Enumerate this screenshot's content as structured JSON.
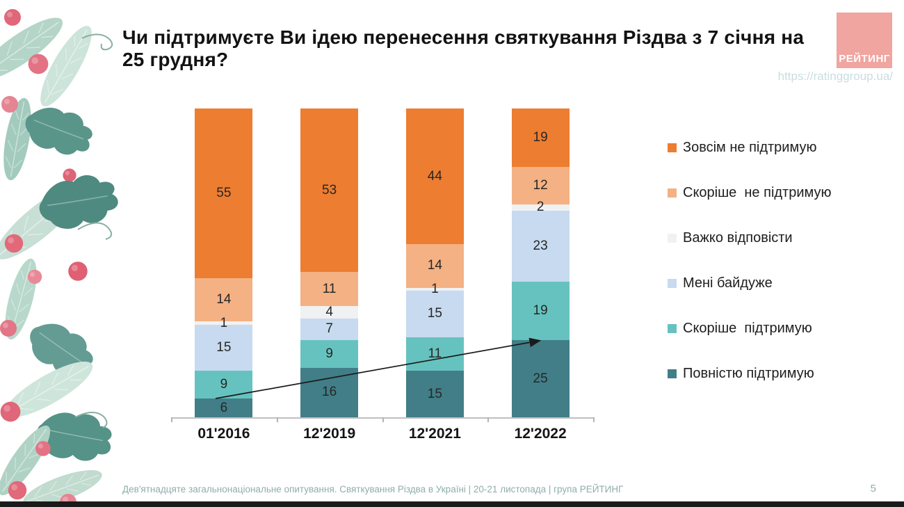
{
  "page": {
    "title": "Чи підтримуєте Ви ідею перенесення святкування Різдва з 7 січня на 25 грудня?",
    "url": "https://ratinggroup.ua/",
    "logo_text": "РЕЙТИНГ",
    "footer": "Дев'ятнадцяте загальнонаціональне опитування. Святкування Різдва в Україні | 20-21 листопада | група РЕЙТИНГ",
    "page_number": "5"
  },
  "colors": {
    "logo_background": "#F0A5A0",
    "logo_text": "#FFFFFF",
    "url_text": "#C9DDE0",
    "footer_text": "#8FADAA",
    "value_label": "#262626",
    "axis": "#BFBFBF",
    "arrow": "#1A1A1A"
  },
  "chart_data": {
    "type": "bar",
    "stacked": true,
    "title": "Чи підтримуєте Ви ідею перенесення святкування Різдва з 7 січня на 25 грудня?",
    "categories": [
      "01'2016",
      "12'2019",
      "12'2021",
      "12'2022"
    ],
    "series": [
      {
        "name": "Зовсім не підтримую",
        "color": "#ED7D31",
        "values": [
          55,
          53,
          44,
          19
        ]
      },
      {
        "name": "Скоріше  не підтримую",
        "color": "#F4B183",
        "values": [
          14,
          11,
          14,
          12
        ]
      },
      {
        "name": "Важко відповісти",
        "color": "#F0F1F2",
        "values": [
          1,
          4,
          1,
          2
        ]
      },
      {
        "name": "Мені байдуже",
        "color": "#C7DAEF",
        "values": [
          15,
          7,
          15,
          23
        ]
      },
      {
        "name": "Скоріше  підтримую",
        "color": "#66C2BF",
        "values": [
          9,
          9,
          11,
          19
        ]
      },
      {
        "name": "Повністю підтримую",
        "color": "#417E87",
        "values": [
          6,
          16,
          15,
          25
        ]
      }
    ],
    "xlabel": "",
    "ylabel": "",
    "ylim": [
      0,
      100
    ],
    "grid": false,
    "legend_position": "right",
    "annotations": [
      {
        "type": "arrow",
        "from": {
          "category": "01'2016",
          "series": "Повністю підтримую",
          "value": 6
        },
        "to": {
          "category": "12'2022",
          "series": "Повністю підтримую",
          "value": 25
        }
      }
    ]
  }
}
